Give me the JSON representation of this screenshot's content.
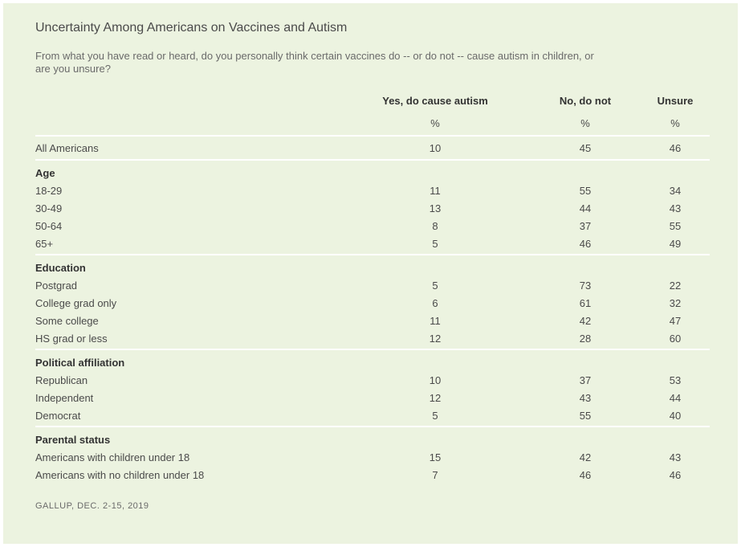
{
  "chart_data": {
    "type": "table",
    "title": "Uncertainty Among Americans on Vaccines and Autism",
    "subtitle": "From what you have read or heard, do you personally think certain vaccines do -- or do not -- cause autism in children, or are you unsure?",
    "columns": [
      "Yes, do cause autism",
      "No, do not",
      "Unsure"
    ],
    "units": [
      "%",
      "%",
      "%"
    ],
    "overall": {
      "label": "All Americans",
      "values": [
        "10",
        "45",
        "46"
      ]
    },
    "groups": [
      {
        "name": "Age",
        "rows": [
          {
            "label": "18-29",
            "values": [
              "11",
              "55",
              "34"
            ]
          },
          {
            "label": "30-49",
            "values": [
              "13",
              "44",
              "43"
            ]
          },
          {
            "label": "50-64",
            "values": [
              "8",
              "37",
              "55"
            ]
          },
          {
            "label": "65+",
            "values": [
              "5",
              "46",
              "49"
            ]
          }
        ]
      },
      {
        "name": "Education",
        "rows": [
          {
            "label": "Postgrad",
            "values": [
              "5",
              "73",
              "22"
            ]
          },
          {
            "label": "College grad only",
            "values": [
              "6",
              "61",
              "32"
            ]
          },
          {
            "label": "Some college",
            "values": [
              "11",
              "42",
              "47"
            ]
          },
          {
            "label": "HS grad or less",
            "values": [
              "12",
              "28",
              "60"
            ]
          }
        ]
      },
      {
        "name": "Political affiliation",
        "rows": [
          {
            "label": "Republican",
            "values": [
              "10",
              "37",
              "53"
            ]
          },
          {
            "label": "Independent",
            "values": [
              "12",
              "43",
              "44"
            ]
          },
          {
            "label": "Democrat",
            "values": [
              "5",
              "55",
              "40"
            ]
          }
        ]
      },
      {
        "name": "Parental status",
        "rows": [
          {
            "label": "Americans with children under 18",
            "values": [
              "15",
              "42",
              "43"
            ]
          },
          {
            "label": "Americans with no children under 18",
            "values": [
              "7",
              "46",
              "46"
            ]
          }
        ]
      }
    ],
    "source": "GALLUP, DEC. 2-15, 2019"
  },
  "colors": {
    "background": "#ecf3e0",
    "divider": "#ffffff",
    "text": "#4a4a4a",
    "heading": "#333333"
  }
}
